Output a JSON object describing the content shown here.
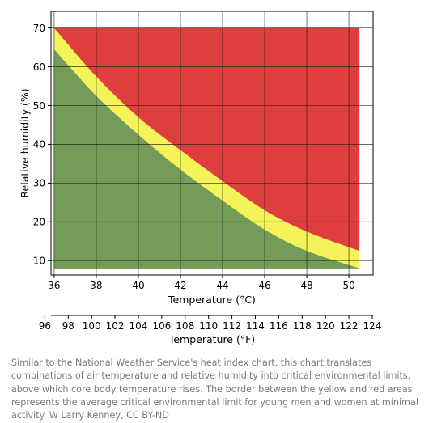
{
  "chart_data": {
    "type": "area",
    "x_celsius": {
      "label": "Temperature (°C)",
      "ticks": [
        36,
        38,
        40,
        42,
        44,
        46,
        48,
        50
      ],
      "range": [
        35.85,
        51.15
      ]
    },
    "x_fahrenheit": {
      "label": "Temperature (°F)",
      "ticks": [
        96,
        98,
        100,
        102,
        104,
        106,
        108,
        110,
        112,
        114,
        116,
        118,
        120,
        122,
        124
      ],
      "range": [
        96.53,
        124.07
      ]
    },
    "y": {
      "label": "Relative humidity (%)",
      "ticks": [
        10,
        20,
        30,
        40,
        50,
        60,
        70
      ],
      "range": [
        6.3,
        74.3
      ]
    },
    "grid": true,
    "regions": [
      {
        "name": "green",
        "color": "#749b58"
      },
      {
        "name": "yellow",
        "color": "#f4f45a"
      },
      {
        "name": "red",
        "color": "#df3e3e"
      }
    ],
    "series": [
      {
        "role": "green-yellow boundary",
        "x": [
          36.0,
          38.0,
          40.0,
          42.0,
          44.0,
          46.0,
          48.0,
          50.5
        ],
        "y": [
          64.5,
          52.5,
          42.5,
          33.5,
          25.5,
          18.0,
          12.5,
          8.0
        ]
      },
      {
        "role": "yellow-red boundary",
        "x": [
          36.0,
          38.0,
          40.0,
          42.0,
          44.0,
          46.0,
          48.0,
          50.5
        ],
        "y": [
          70.0,
          57.5,
          47.0,
          38.5,
          30.5,
          23.0,
          17.5,
          12.5
        ]
      }
    ],
    "plot_extent": {
      "x": [
        36.0,
        50.5
      ],
      "y": [
        8.0,
        70.0
      ]
    }
  },
  "caption": "Similar to the National Weather Service's heat index chart, this chart translates combinations of air temperature and relative humidity into critical environmental limits, above which core body temperature rises. The border between the yellow and red areas represents the average critical environmental limit for young men and women at minimal activity. W Larry Kenney, CC BY-ND"
}
